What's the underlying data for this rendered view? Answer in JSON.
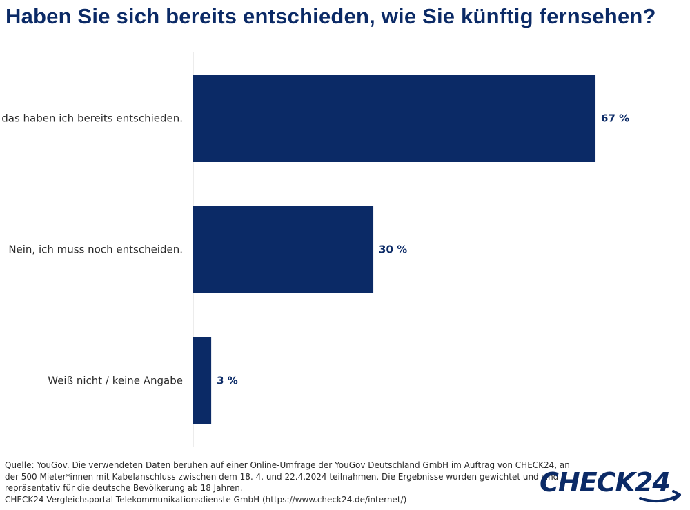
{
  "title": "Haben Sie sich bereits entschieden, wie Sie künftig fernsehen?",
  "chart_data": {
    "type": "bar",
    "orientation": "horizontal",
    "categories": [
      "Ja, das haben ich bereits entschieden.",
      "Nein, ich muss noch entscheiden.",
      "Weiß nicht / keine Angabe"
    ],
    "values": [
      67,
      30,
      3
    ],
    "value_labels": [
      "67 %",
      "30 %",
      "3 %"
    ],
    "xlim": [
      0,
      100
    ],
    "grid": false,
    "bar_color": "#0b2a66"
  },
  "footer": {
    "line1": "Quelle: YouGov. Die verwendeten Daten beruhen auf einer Online-Umfrage der YouGov Deutschland GmbH im Auftrag von CHECK24, an",
    "line2": "der 500 Mieter*innen mit Kabelanschluss zwischen dem 18. 4. und 22.4.2024 teilnahmen. Die Ergebnisse wurden gewichtet und sind",
    "line3": "repräsentativ für die deutsche Bevölkerung ab 18 Jahren.",
    "line4": "CHECK24 Vergleichsportal Telekommunikationsdienste GmbH (https://www.check24.de/internet/)"
  },
  "logo": {
    "text": "CHECK24",
    "color": "#0b2a66"
  }
}
